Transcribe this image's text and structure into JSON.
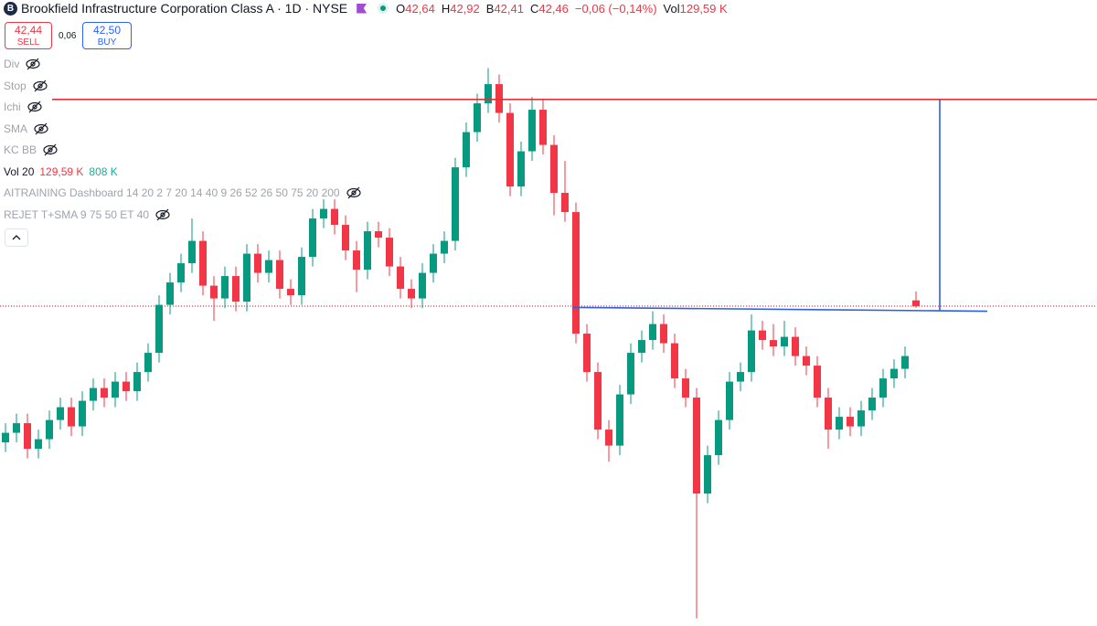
{
  "header": {
    "logo": "B",
    "title": "Brookfield Infrastructure Corporation Class A · 1D · NYSE",
    "ohlc": [
      {
        "label": "O",
        "value": "42,64"
      },
      {
        "label": "H",
        "value": "42,92"
      },
      {
        "label": "B",
        "value": "42,41"
      },
      {
        "label": "C",
        "value": "42,46"
      }
    ],
    "change": "−0,06 (−0,14%)",
    "volume_label": "Vol",
    "volume_value": "129,59 K"
  },
  "trade": {
    "sell_price": "42,44",
    "sell_label": "SELL",
    "spread": "0,06",
    "buy_price": "42,50",
    "buy_label": "BUY"
  },
  "indicators": [
    {
      "name": "Div"
    },
    {
      "name": "Stop"
    },
    {
      "name": "Ichi"
    },
    {
      "name": "SMA"
    },
    {
      "name": "KC BB"
    },
    {
      "name": "Vol 20",
      "values": [
        "129,59 K",
        "808 K"
      ]
    },
    {
      "name": "AITRAINING Dashboard 14 20 2 7 20 14 40 9 26 52 26 50 75 20 200"
    },
    {
      "name": "REJET T+SMA 9 75 50 ET 40"
    }
  ],
  "chart_data": {
    "type": "candlestick",
    "up_color": "#089981",
    "down_color": "#f23645",
    "ylim": [
      32.46,
      52.03
    ],
    "open": [
      38.2,
      38.5,
      38.8,
      38.0,
      38.3,
      38.9,
      39.3,
      38.7,
      39.5,
      39.9,
      39.6,
      40.1,
      39.8,
      40.4,
      41.0,
      42.5,
      43.2,
      43.8,
      44.5,
      43.1,
      42.7,
      43.4,
      42.6,
      44.1,
      43.5,
      43.9,
      43.0,
      42.8,
      44.0,
      45.2,
      45.5,
      45.0,
      44.2,
      43.6,
      44.8,
      44.6,
      43.7,
      43.0,
      42.7,
      43.5,
      44.1,
      44.5,
      46.8,
      47.9,
      48.8,
      49.4,
      48.5,
      46.2,
      47.3,
      48.6,
      47.5,
      46.0,
      45.4,
      41.6,
      40.4,
      38.6,
      38.1,
      39.7,
      41.0,
      41.4,
      41.9,
      41.3,
      40.2,
      39.6,
      36.6,
      37.8,
      38.9,
      40.1,
      40.4,
      41.7,
      41.4,
      41.2,
      41.5,
      40.9,
      40.6,
      39.6,
      38.6,
      39.0,
      38.7,
      39.2,
      39.6,
      40.2,
      40.5,
      42.64
    ],
    "high": [
      38.8,
      39.1,
      39.1,
      38.6,
      39.2,
      39.6,
      39.6,
      39.8,
      40.2,
      40.2,
      40.4,
      40.4,
      40.7,
      41.3,
      42.8,
      43.5,
      44.1,
      45.2,
      44.8,
      43.4,
      43.7,
      43.7,
      44.4,
      44.4,
      44.2,
      44.2,
      43.3,
      44.3,
      45.5,
      45.8,
      45.8,
      45.3,
      44.5,
      45.1,
      45.1,
      44.9,
      44.0,
      43.3,
      43.8,
      44.4,
      44.8,
      47.1,
      48.2,
      49.1,
      49.9,
      49.7,
      48.8,
      47.6,
      49.0,
      48.9,
      47.8,
      47.0,
      45.7,
      41.9,
      40.7,
      38.9,
      40.0,
      41.3,
      41.7,
      42.3,
      42.2,
      41.6,
      40.5,
      39.9,
      38.1,
      39.2,
      40.4,
      40.7,
      42.2,
      42.0,
      41.9,
      42.0,
      41.8,
      41.2,
      40.9,
      39.9,
      39.3,
      39.3,
      39.5,
      39.9,
      40.5,
      40.8,
      41.2,
      42.92
    ],
    "low": [
      37.9,
      38.2,
      37.7,
      37.7,
      38.0,
      38.6,
      38.4,
      38.4,
      39.2,
      39.3,
      39.3,
      39.5,
      39.5,
      40.1,
      40.7,
      42.2,
      42.9,
      43.5,
      42.8,
      42.0,
      42.4,
      42.3,
      42.3,
      43.2,
      43.2,
      42.7,
      42.5,
      42.5,
      43.7,
      44.9,
      44.7,
      43.9,
      42.9,
      43.3,
      44.3,
      43.4,
      42.7,
      42.4,
      42.4,
      43.2,
      43.8,
      44.2,
      46.5,
      47.6,
      48.5,
      48.2,
      45.9,
      45.9,
      47.0,
      47.2,
      45.3,
      45.1,
      41.3,
      40.1,
      38.3,
      37.6,
      37.8,
      39.4,
      40.7,
      41.1,
      41.0,
      39.9,
      39.3,
      32.7,
      36.3,
      37.5,
      38.6,
      39.8,
      40.1,
      41.1,
      40.9,
      40.9,
      40.6,
      40.3,
      39.3,
      38.0,
      38.3,
      38.4,
      38.4,
      38.9,
      39.3,
      39.9,
      40.2,
      42.41
    ],
    "close": [
      38.5,
      38.8,
      38.0,
      38.3,
      38.9,
      39.3,
      38.7,
      39.5,
      39.9,
      39.6,
      40.1,
      39.8,
      40.4,
      41.0,
      42.5,
      43.2,
      43.8,
      44.5,
      43.1,
      42.7,
      43.4,
      42.6,
      44.1,
      43.5,
      43.9,
      43.0,
      42.8,
      44.0,
      45.2,
      45.5,
      45.0,
      44.2,
      43.6,
      44.8,
      44.6,
      43.7,
      43.0,
      42.7,
      43.5,
      44.1,
      44.5,
      46.8,
      47.9,
      48.8,
      49.4,
      48.5,
      46.2,
      47.3,
      48.6,
      47.5,
      46.0,
      45.4,
      41.6,
      40.4,
      38.6,
      38.1,
      39.7,
      41.0,
      41.4,
      41.9,
      41.3,
      40.2,
      39.6,
      36.6,
      37.8,
      38.9,
      40.1,
      40.4,
      41.7,
      41.4,
      41.2,
      41.5,
      40.9,
      40.6,
      39.6,
      38.6,
      39.0,
      38.7,
      39.2,
      39.6,
      40.2,
      40.5,
      40.9,
      42.46
    ],
    "resistance_level": 48.92,
    "resistance_color": "#e0303a",
    "neckline": [
      42.42,
      42.3
    ],
    "neckline_color": "#2f5fe0"
  }
}
